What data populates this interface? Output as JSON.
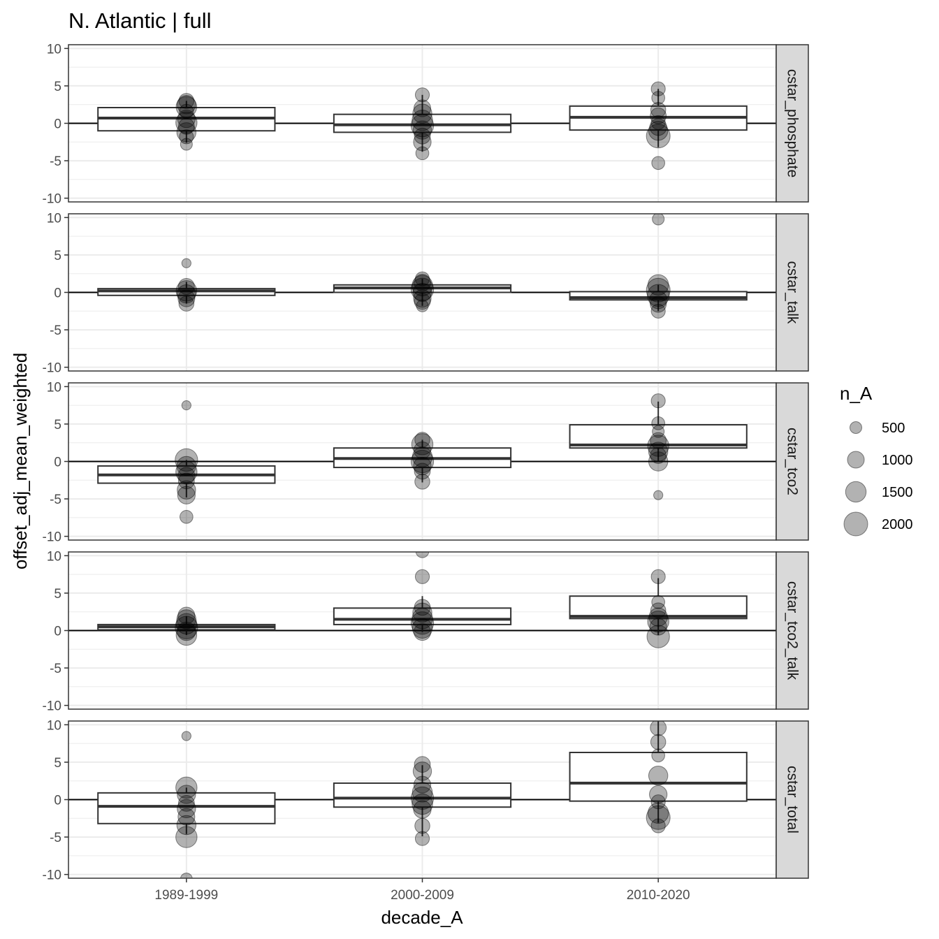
{
  "chart_data": {
    "type": "boxplot",
    "title": "N. Atlantic | full",
    "xlabel": "decade_A",
    "ylabel": "offset_adj_mean_weighted",
    "categories": [
      "1989-1999",
      "2000-2009",
      "2010-2020"
    ],
    "ylim": [
      -10.5,
      10.5
    ],
    "yticks": [
      -10,
      -5,
      0,
      5,
      10
    ],
    "ytick_labels": [
      "-10",
      "-5",
      "0",
      "5",
      "10"
    ],
    "hline": 0,
    "grid": true,
    "legend": {
      "title": "n_A",
      "placement": "right",
      "entries": [
        {
          "label": "500",
          "value": 500
        },
        {
          "label": "1000",
          "value": 1000
        },
        {
          "label": "1500",
          "value": 1500
        },
        {
          "label": "2000",
          "value": 2000
        }
      ]
    },
    "panels": [
      {
        "label": "cstar_phosphate",
        "boxes": [
          {
            "category": "1989-1999",
            "q1": -1.0,
            "median": 0.7,
            "q3": 2.1,
            "whisker_low": -2.6,
            "whisker_high": 3.0
          },
          {
            "category": "2000-2009",
            "q1": -1.2,
            "median": -0.2,
            "q3": 1.2,
            "whisker_low": -3.8,
            "whisker_high": 3.8
          },
          {
            "category": "2010-2020",
            "q1": -0.9,
            "median": 0.8,
            "q3": 2.3,
            "whisker_low": -3.2,
            "whisker_high": 4.6
          }
        ],
        "points": [
          {
            "category": "1989-1999",
            "y": 3.0,
            "n": 800
          },
          {
            "category": "1989-1999",
            "y": 2.5,
            "n": 1200
          },
          {
            "category": "1989-1999",
            "y": 2.2,
            "n": 1500
          },
          {
            "category": "1989-1999",
            "y": 1.6,
            "n": 700
          },
          {
            "category": "1989-1999",
            "y": 0.6,
            "n": 1100
          },
          {
            "category": "1989-1999",
            "y": 0.1,
            "n": 1600
          },
          {
            "category": "1989-1999",
            "y": -0.4,
            "n": 900
          },
          {
            "category": "1989-1999",
            "y": -1.2,
            "n": 1300
          },
          {
            "category": "1989-1999",
            "y": -1.8,
            "n": 700
          },
          {
            "category": "1989-1999",
            "y": -2.8,
            "n": 500
          },
          {
            "category": "2000-2009",
            "y": 3.8,
            "n": 700
          },
          {
            "category": "2000-2009",
            "y": 2.0,
            "n": 1000
          },
          {
            "category": "2000-2009",
            "y": 1.3,
            "n": 1300
          },
          {
            "category": "2000-2009",
            "y": 0.4,
            "n": 1500
          },
          {
            "category": "2000-2009",
            "y": -0.3,
            "n": 1800
          },
          {
            "category": "2000-2009",
            "y": -0.9,
            "n": 1200
          },
          {
            "category": "2000-2009",
            "y": -1.7,
            "n": 900
          },
          {
            "category": "2000-2009",
            "y": -2.5,
            "n": 1100
          },
          {
            "category": "2000-2009",
            "y": -4.0,
            "n": 600
          },
          {
            "category": "2010-2020",
            "y": 4.6,
            "n": 700
          },
          {
            "category": "2010-2020",
            "y": 3.4,
            "n": 600
          },
          {
            "category": "2010-2020",
            "y": 1.8,
            "n": 800
          },
          {
            "category": "2010-2020",
            "y": 1.0,
            "n": 900
          },
          {
            "category": "2010-2020",
            "y": 0.1,
            "n": 700
          },
          {
            "category": "2010-2020",
            "y": -0.5,
            "n": 1000
          },
          {
            "category": "2010-2020",
            "y": -1.0,
            "n": 1300
          },
          {
            "category": "2010-2020",
            "y": -1.7,
            "n": 2000
          },
          {
            "category": "2010-2020",
            "y": -5.3,
            "n": 600
          }
        ]
      },
      {
        "label": "cstar_talk",
        "boxes": [
          {
            "category": "1989-1999",
            "q1": -0.4,
            "median": 0.2,
            "q3": 0.5,
            "whisker_low": -1.5,
            "whisker_high": 1.4
          },
          {
            "category": "2000-2009",
            "q1": 0.0,
            "median": 0.6,
            "q3": 1.0,
            "whisker_low": -1.8,
            "whisker_high": 1.8
          },
          {
            "category": "2010-2020",
            "q1": -1.0,
            "median": -0.7,
            "q3": 0.1,
            "whisker_low": -2.5,
            "whisker_high": 1.0
          }
        ],
        "points": [
          {
            "category": "1989-1999",
            "y": 3.9,
            "n": 300
          },
          {
            "category": "1989-1999",
            "y": 0.8,
            "n": 900
          },
          {
            "category": "1989-1999",
            "y": 0.2,
            "n": 1500
          },
          {
            "category": "1989-1999",
            "y": -0.2,
            "n": 1200
          },
          {
            "category": "1989-1999",
            "y": -0.8,
            "n": 1000
          },
          {
            "category": "1989-1999",
            "y": -1.5,
            "n": 800
          },
          {
            "category": "2000-2009",
            "y": 1.8,
            "n": 700
          },
          {
            "category": "2000-2009",
            "y": 1.3,
            "n": 1000
          },
          {
            "category": "2000-2009",
            "y": 0.9,
            "n": 1500
          },
          {
            "category": "2000-2009",
            "y": 0.4,
            "n": 1800
          },
          {
            "category": "2000-2009",
            "y": 0.0,
            "n": 1200
          },
          {
            "category": "2000-2009",
            "y": -0.8,
            "n": 1100
          },
          {
            "category": "2000-2009",
            "y": -1.2,
            "n": 900
          },
          {
            "category": "2000-2009",
            "y": -1.8,
            "n": 500
          },
          {
            "category": "2010-2020",
            "y": 9.8,
            "n": 500
          },
          {
            "category": "2010-2020",
            "y": 1.0,
            "n": 1500
          },
          {
            "category": "2010-2020",
            "y": 0.3,
            "n": 2000
          },
          {
            "category": "2010-2020",
            "y": -0.4,
            "n": 1700
          },
          {
            "category": "2010-2020",
            "y": -1.0,
            "n": 1100
          },
          {
            "category": "2010-2020",
            "y": -1.6,
            "n": 900
          },
          {
            "category": "2010-2020",
            "y": -2.5,
            "n": 700
          }
        ]
      },
      {
        "label": "cstar_tco2",
        "boxes": [
          {
            "category": "1989-1999",
            "q1": -2.9,
            "median": -1.8,
            "q3": -0.6,
            "whisker_low": -4.8,
            "whisker_high": 0.2
          },
          {
            "category": "2000-2009",
            "q1": -0.8,
            "median": 0.4,
            "q3": 1.8,
            "whisker_low": -2.8,
            "whisker_high": 2.9
          },
          {
            "category": "2010-2020",
            "q1": 1.8,
            "median": 2.2,
            "q3": 4.9,
            "whisker_low": 0.0,
            "whisker_high": 8.0
          }
        ],
        "points": [
          {
            "category": "1989-1999",
            "y": 7.5,
            "n": 300
          },
          {
            "category": "1989-1999",
            "y": 0.2,
            "n": 1800
          },
          {
            "category": "1989-1999",
            "y": -0.6,
            "n": 1300
          },
          {
            "category": "1989-1999",
            "y": -1.4,
            "n": 1600
          },
          {
            "category": "1989-1999",
            "y": -1.9,
            "n": 1000
          },
          {
            "category": "1989-1999",
            "y": -2.6,
            "n": 900
          },
          {
            "category": "1989-1999",
            "y": -3.8,
            "n": 1200
          },
          {
            "category": "1989-1999",
            "y": -4.5,
            "n": 1100
          },
          {
            "category": "1989-1999",
            "y": -7.4,
            "n": 600
          },
          {
            "category": "2000-2009",
            "y": 2.9,
            "n": 800
          },
          {
            "category": "2000-2009",
            "y": 2.3,
            "n": 1600
          },
          {
            "category": "2000-2009",
            "y": 1.5,
            "n": 1000
          },
          {
            "category": "2000-2009",
            "y": 0.6,
            "n": 1400
          },
          {
            "category": "2000-2009",
            "y": 0.0,
            "n": 1800
          },
          {
            "category": "2000-2009",
            "y": -0.6,
            "n": 1100
          },
          {
            "category": "2000-2009",
            "y": -1.3,
            "n": 900
          },
          {
            "category": "2000-2009",
            "y": -2.7,
            "n": 800
          },
          {
            "category": "2010-2020",
            "y": 8.1,
            "n": 700
          },
          {
            "category": "2010-2020",
            "y": 5.1,
            "n": 600
          },
          {
            "category": "2010-2020",
            "y": 4.0,
            "n": 500
          },
          {
            "category": "2010-2020",
            "y": 2.8,
            "n": 900
          },
          {
            "category": "2010-2020",
            "y": 2.1,
            "n": 1600
          },
          {
            "category": "2010-2020",
            "y": 1.3,
            "n": 1300
          },
          {
            "category": "2010-2020",
            "y": 0.8,
            "n": 900
          },
          {
            "category": "2010-2020",
            "y": 0.0,
            "n": 1300
          },
          {
            "category": "2010-2020",
            "y": -4.5,
            "n": 300
          }
        ]
      },
      {
        "label": "cstar_tco2_talk",
        "boxes": [
          {
            "category": "1989-1999",
            "q1": 0.1,
            "median": 0.5,
            "q3": 0.8,
            "whisker_low": -0.6,
            "whisker_high": 1.9
          },
          {
            "category": "2000-2009",
            "q1": 0.8,
            "median": 1.5,
            "q3": 3.0,
            "whisker_low": -0.2,
            "whisker_high": 4.6
          },
          {
            "category": "2010-2020",
            "q1": 1.6,
            "median": 1.9,
            "q3": 4.6,
            "whisker_low": -0.6,
            "whisker_high": 7.0
          }
        ],
        "points": [
          {
            "category": "1989-1999",
            "y": 2.0,
            "n": 1000
          },
          {
            "category": "1989-1999",
            "y": 1.5,
            "n": 1300
          },
          {
            "category": "1989-1999",
            "y": 0.9,
            "n": 1500
          },
          {
            "category": "1989-1999",
            "y": 0.4,
            "n": 1800
          },
          {
            "category": "1989-1999",
            "y": -0.1,
            "n": 1200
          },
          {
            "category": "1989-1999",
            "y": -0.6,
            "n": 1500
          },
          {
            "category": "2000-2009",
            "y": 10.6,
            "n": 600
          },
          {
            "category": "2000-2009",
            "y": 7.2,
            "n": 700
          },
          {
            "category": "2000-2009",
            "y": 3.1,
            "n": 900
          },
          {
            "category": "2000-2009",
            "y": 2.4,
            "n": 1300
          },
          {
            "category": "2000-2009",
            "y": 1.6,
            "n": 1500
          },
          {
            "category": "2000-2009",
            "y": 1.0,
            "n": 1800
          },
          {
            "category": "2000-2009",
            "y": 0.3,
            "n": 1400
          },
          {
            "category": "2000-2009",
            "y": -0.2,
            "n": 1000
          },
          {
            "category": "2010-2020",
            "y": 7.2,
            "n": 700
          },
          {
            "category": "2010-2020",
            "y": 3.8,
            "n": 600
          },
          {
            "category": "2010-2020",
            "y": 2.7,
            "n": 800
          },
          {
            "category": "2010-2020",
            "y": 1.8,
            "n": 1200
          },
          {
            "category": "2010-2020",
            "y": 1.2,
            "n": 1600
          },
          {
            "category": "2010-2020",
            "y": 0.5,
            "n": 1000
          },
          {
            "category": "2010-2020",
            "y": -0.8,
            "n": 1800
          }
        ]
      },
      {
        "label": "cstar_total",
        "boxes": [
          {
            "category": "1989-1999",
            "q1": -3.2,
            "median": -0.9,
            "q3": 0.9,
            "whisker_low": -4.6,
            "whisker_high": 1.6
          },
          {
            "category": "2000-2009",
            "q1": -1.0,
            "median": 0.2,
            "q3": 2.2,
            "whisker_low": -4.9,
            "whisker_high": 4.6
          },
          {
            "category": "2010-2020",
            "q1": -0.2,
            "median": 2.2,
            "q3": 6.3,
            "whisker_low": -3.1,
            "whisker_high": 10.8
          }
        ],
        "points": [
          {
            "category": "1989-1999",
            "y": 8.5,
            "n": 300
          },
          {
            "category": "1989-1999",
            "y": 1.6,
            "n": 1600
          },
          {
            "category": "1989-1999",
            "y": 0.7,
            "n": 1200
          },
          {
            "category": "1989-1999",
            "y": -0.5,
            "n": 900
          },
          {
            "category": "1989-1999",
            "y": -1.2,
            "n": 1200
          },
          {
            "category": "1989-1999",
            "y": -2.3,
            "n": 1000
          },
          {
            "category": "1989-1999",
            "y": -3.4,
            "n": 1300
          },
          {
            "category": "1989-1999",
            "y": -5.0,
            "n": 1600
          },
          {
            "category": "1989-1999",
            "y": -10.6,
            "n": 500
          },
          {
            "category": "2000-2009",
            "y": 4.7,
            "n": 900
          },
          {
            "category": "2000-2009",
            "y": 3.8,
            "n": 1200
          },
          {
            "category": "2000-2009",
            "y": 2.0,
            "n": 1000
          },
          {
            "category": "2000-2009",
            "y": 1.0,
            "n": 1400
          },
          {
            "category": "2000-2009",
            "y": 0.2,
            "n": 1800
          },
          {
            "category": "2000-2009",
            "y": -0.6,
            "n": 1500
          },
          {
            "category": "2000-2009",
            "y": -1.3,
            "n": 1100
          },
          {
            "category": "2000-2009",
            "y": -3.5,
            "n": 800
          },
          {
            "category": "2000-2009",
            "y": -5.2,
            "n": 700
          },
          {
            "category": "2010-2020",
            "y": 9.6,
            "n": 900
          },
          {
            "category": "2010-2020",
            "y": 7.7,
            "n": 800
          },
          {
            "category": "2010-2020",
            "y": 5.9,
            "n": 600
          },
          {
            "category": "2010-2020",
            "y": 3.2,
            "n": 1300
          },
          {
            "category": "2010-2020",
            "y": 0.7,
            "n": 1100
          },
          {
            "category": "2010-2020",
            "y": -0.3,
            "n": 700
          },
          {
            "category": "2010-2020",
            "y": -1.8,
            "n": 1500
          },
          {
            "category": "2010-2020",
            "y": -2.4,
            "n": 2000
          },
          {
            "category": "2010-2020",
            "y": -3.5,
            "n": 700
          }
        ]
      }
    ]
  }
}
